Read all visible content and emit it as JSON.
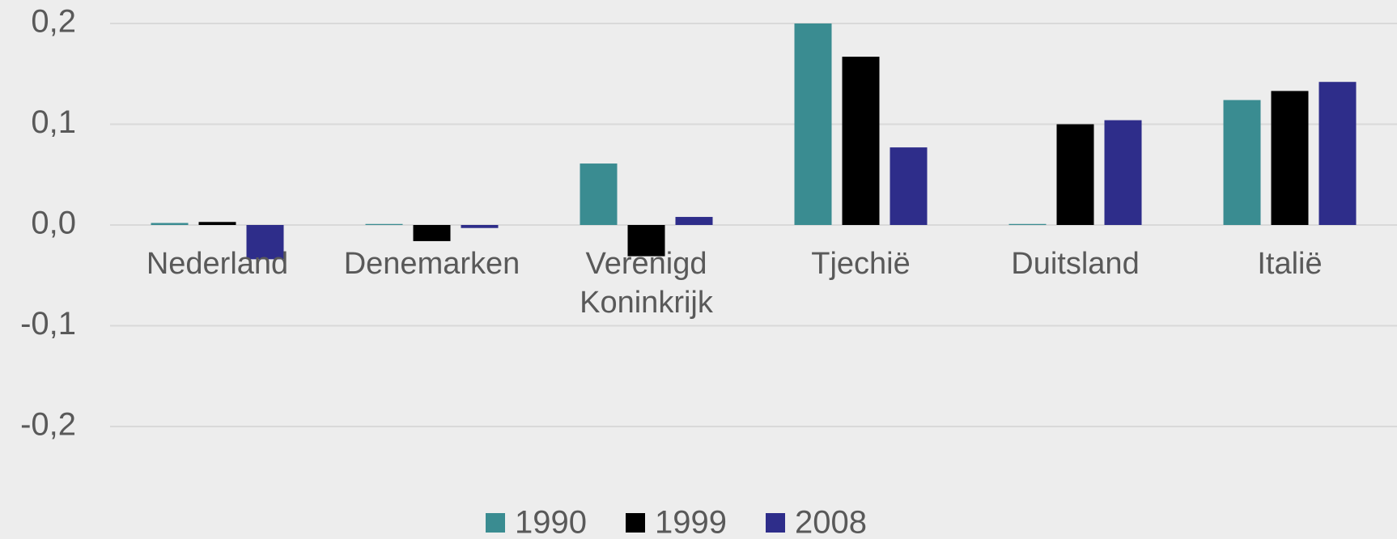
{
  "chart_data": {
    "type": "bar",
    "categories": [
      "Nederland",
      "Denemarken",
      "Verenigd Koninkrijk",
      "Tjechië",
      "Duitsland",
      "Italië"
    ],
    "series": [
      {
        "name": "1990",
        "color": "#3a8c91",
        "values": [
          0.002,
          0.001,
          0.061,
          0.2,
          0.001,
          0.124
        ]
      },
      {
        "name": "1999",
        "color": "#000000",
        "values": [
          0.003,
          -0.016,
          -0.031,
          0.167,
          0.1,
          0.133
        ]
      },
      {
        "name": "2008",
        "color": "#2e2d8a",
        "values": [
          -0.034,
          -0.003,
          0.008,
          0.077,
          0.104,
          0.142
        ]
      }
    ],
    "ylim": [
      -0.2,
      0.2
    ],
    "yticks": [
      {
        "value": -0.2,
        "label": "-0,2"
      },
      {
        "value": -0.1,
        "label": "-0,1"
      },
      {
        "value": 0,
        "label": "0,0"
      },
      {
        "value": 0.1,
        "label": "0,1"
      },
      {
        "value": 0.2,
        "label": "0,2"
      }
    ],
    "grid": true,
    "legend": "bottom"
  }
}
